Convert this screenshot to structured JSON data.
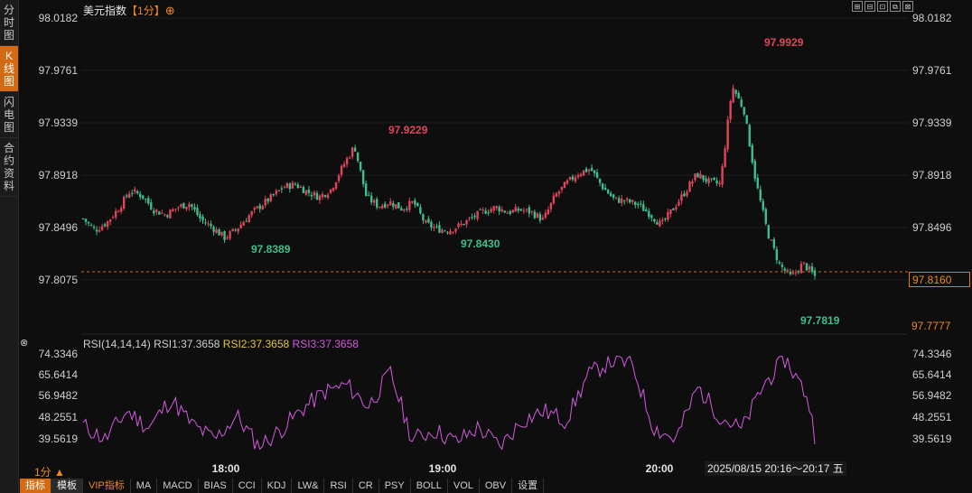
{
  "sidebar": {
    "items": [
      {
        "label": [
          "分",
          "时",
          "图"
        ],
        "active": false
      },
      {
        "label": [
          "K",
          "线",
          "图"
        ],
        "active": true
      },
      {
        "label": [
          "闪",
          "电",
          "图"
        ],
        "active": false
      },
      {
        "label": [
          "合",
          "约",
          "资",
          "料"
        ],
        "active": false
      }
    ]
  },
  "header": {
    "title": "美元指数",
    "timeframe": "【1分】",
    "target_icon": "⊕",
    "window_controls": [
      "⊞",
      "⊟",
      "⊡",
      "⧉",
      "⊠"
    ]
  },
  "price_axis": {
    "left_ticks": [
      "98.0182",
      "97.9761",
      "97.9339",
      "97.8918",
      "97.8496",
      "97.8075"
    ],
    "right_ticks": [
      "98.0182",
      "97.9761",
      "97.9339",
      "97.8918",
      "97.8496",
      "97.8075"
    ],
    "current_price": "97.8160",
    "axis_low": "97.7777"
  },
  "annotations": {
    "high_1": "97.9229",
    "high_2": "97.9929",
    "low_1": "97.8389",
    "low_2": "97.8430",
    "low_3": "97.7819"
  },
  "indicator": {
    "icon": "⊗",
    "name": "RSI(14,14,14)",
    "rsi1": "RSI1:37.3658",
    "rsi2": "RSI2:37.3658",
    "rsi3": "RSI3:37.3658",
    "ticks_left": [
      "74.3346",
      "65.6414",
      "56.9482",
      "48.2551",
      "39.5619"
    ],
    "ticks_right": [
      "74.3346",
      "65.6414",
      "56.9482",
      "48.2551",
      "39.5619"
    ]
  },
  "time_axis": [
    "18:00",
    "19:00",
    "20:00"
  ],
  "footer": {
    "period": "1分 ▲",
    "date_range": "2025/08/15 20:16～20:17 五"
  },
  "tabs": [
    "指标",
    "模板",
    "VIP指标",
    "MA",
    "MACD",
    "BIAS",
    "CCI",
    "KDJ",
    "LW&",
    "RSI",
    "CR",
    "PSY",
    "BOLL",
    "VOL",
    "OBV",
    "设置"
  ],
  "colors": {
    "up": "#e0455a",
    "down": "#3dbf8c",
    "accent": "#f08a1c",
    "rsi_line": "#d35adf"
  },
  "chart_data": {
    "type": "candlestick",
    "title": "美元指数【1分】",
    "ylim": [
      97.7777,
      98.0182
    ],
    "key_prices": {
      "highs": [
        97.9229,
        97.9929
      ],
      "lows": [
        97.8389,
        97.843,
        97.7819
      ],
      "last": 97.816
    },
    "close_path": [
      [
        0,
        97.861
      ],
      [
        0.015,
        97.852
      ],
      [
        0.03,
        97.858
      ],
      [
        0.045,
        97.869
      ],
      [
        0.06,
        97.883
      ],
      [
        0.075,
        97.879
      ],
      [
        0.09,
        97.868
      ],
      [
        0.105,
        97.864
      ],
      [
        0.12,
        97.87
      ],
      [
        0.135,
        97.873
      ],
      [
        0.15,
        97.86
      ],
      [
        0.165,
        97.854
      ],
      [
        0.18,
        97.846
      ],
      [
        0.195,
        97.853
      ],
      [
        0.21,
        97.863
      ],
      [
        0.225,
        97.871
      ],
      [
        0.24,
        97.878
      ],
      [
        0.255,
        97.886
      ],
      [
        0.27,
        97.888
      ],
      [
        0.285,
        97.882
      ],
      [
        0.3,
        97.878
      ],
      [
        0.315,
        97.884
      ],
      [
        0.33,
        97.902
      ],
      [
        0.345,
        97.918
      ],
      [
        0.36,
        97.878
      ],
      [
        0.375,
        97.871
      ],
      [
        0.39,
        97.874
      ],
      [
        0.405,
        97.869
      ],
      [
        0.42,
        97.874
      ],
      [
        0.435,
        97.857
      ],
      [
        0.45,
        97.853
      ],
      [
        0.465,
        97.852
      ],
      [
        0.48,
        97.856
      ],
      [
        0.495,
        97.862
      ],
      [
        0.51,
        97.867
      ],
      [
        0.525,
        97.87
      ],
      [
        0.54,
        97.866
      ],
      [
        0.555,
        97.868
      ],
      [
        0.57,
        97.866
      ],
      [
        0.585,
        97.86
      ],
      [
        0.6,
        97.879
      ],
      [
        0.615,
        97.889
      ],
      [
        0.63,
        97.897
      ],
      [
        0.645,
        97.9
      ],
      [
        0.66,
        97.886
      ],
      [
        0.675,
        97.876
      ],
      [
        0.69,
        97.875
      ],
      [
        0.705,
        97.872
      ],
      [
        0.72,
        97.865
      ],
      [
        0.735,
        97.856
      ],
      [
        0.75,
        97.869
      ],
      [
        0.765,
        97.882
      ],
      [
        0.78,
        97.896
      ],
      [
        0.795,
        97.89
      ],
      [
        0.81,
        97.888
      ],
      [
        0.825,
        97.965
      ],
      [
        0.84,
        97.946
      ],
      [
        0.855,
        97.89
      ],
      [
        0.87,
        97.85
      ],
      [
        0.885,
        97.825
      ],
      [
        0.9,
        97.815
      ],
      [
        0.915,
        97.826
      ],
      [
        0.93,
        97.816
      ]
    ],
    "rsi_path": [
      [
        0,
        46
      ],
      [
        0.03,
        40
      ],
      [
        0.06,
        52
      ],
      [
        0.09,
        45
      ],
      [
        0.12,
        57
      ],
      [
        0.15,
        46
      ],
      [
        0.18,
        40
      ],
      [
        0.21,
        50
      ],
      [
        0.24,
        37
      ],
      [
        0.27,
        44
      ],
      [
        0.3,
        53
      ],
      [
        0.33,
        60
      ],
      [
        0.36,
        63
      ],
      [
        0.39,
        54
      ],
      [
        0.42,
        68
      ],
      [
        0.45,
        40
      ],
      [
        0.48,
        44
      ],
      [
        0.51,
        39
      ],
      [
        0.54,
        45
      ],
      [
        0.57,
        37
      ],
      [
        0.6,
        48
      ],
      [
        0.63,
        52
      ],
      [
        0.66,
        48
      ],
      [
        0.69,
        67
      ],
      [
        0.72,
        73
      ],
      [
        0.75,
        72
      ],
      [
        0.78,
        45
      ],
      [
        0.81,
        40
      ],
      [
        0.84,
        62
      ],
      [
        0.87,
        50
      ],
      [
        0.9,
        44
      ],
      [
        0.93,
        63
      ],
      [
        0.96,
        74
      ],
      [
        0.99,
        58
      ],
      [
        1.0,
        42
      ]
    ]
  }
}
